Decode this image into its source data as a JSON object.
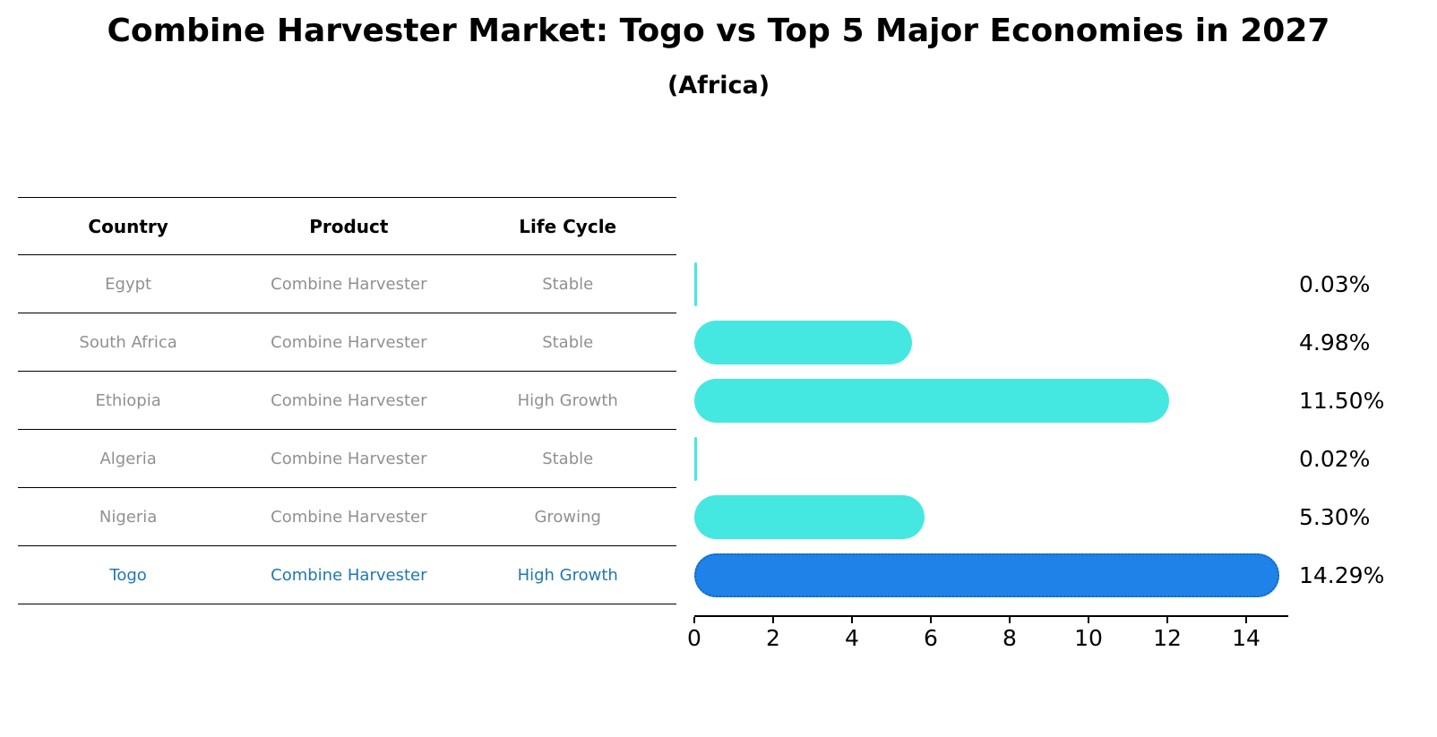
{
  "title": "Combine Harvester Market: Togo vs Top 5 Major Economies in 2027",
  "subtitle": "(Africa)",
  "table": {
    "headers": [
      "Country",
      "Product",
      "Life Cycle"
    ],
    "rows": [
      {
        "country": "Egypt",
        "product": "Combine Harvester",
        "life_cycle": "Stable",
        "highlight": false
      },
      {
        "country": "South Africa",
        "product": "Combine Harvester",
        "life_cycle": "Stable",
        "highlight": false
      },
      {
        "country": "Ethiopia",
        "product": "Combine Harvester",
        "life_cycle": "High Growth",
        "highlight": false
      },
      {
        "country": "Algeria",
        "product": "Combine Harvester",
        "life_cycle": "Stable",
        "highlight": false
      },
      {
        "country": "Nigeria",
        "product": "Combine Harvester",
        "life_cycle": "Growing",
        "highlight": false
      },
      {
        "country": "Togo",
        "product": "Combine Harvester",
        "life_cycle": "High Growth",
        "highlight": true
      }
    ]
  },
  "chart_data": {
    "type": "bar",
    "orientation": "horizontal",
    "title": "Combine Harvester Market: Togo vs Top 5 Major Economies in 2027",
    "subtitle": "(Africa)",
    "categories": [
      "Egypt",
      "South Africa",
      "Ethiopia",
      "Algeria",
      "Nigeria",
      "Togo"
    ],
    "values": [
      0.03,
      4.98,
      11.5,
      0.02,
      5.3,
      14.29
    ],
    "value_labels": [
      "0.03%",
      "4.98%",
      "11.50%",
      "0.02%",
      "5.30%",
      "14.29%"
    ],
    "xlim": [
      0,
      15
    ],
    "x_ticks": [
      0,
      2,
      4,
      6,
      8,
      10,
      12,
      14
    ],
    "x_tick_labels": [
      "0",
      "2",
      "4",
      "6",
      "8",
      "10",
      "12",
      "14"
    ],
    "grid": false,
    "legend": false,
    "bar_color": "#45E8E0",
    "highlight_color": "#1E82E8",
    "highlight_border_color": "#1565C0",
    "highlight_index": 5,
    "highlight_text_color": "#1F77B4",
    "body_text_color": "#909090"
  }
}
